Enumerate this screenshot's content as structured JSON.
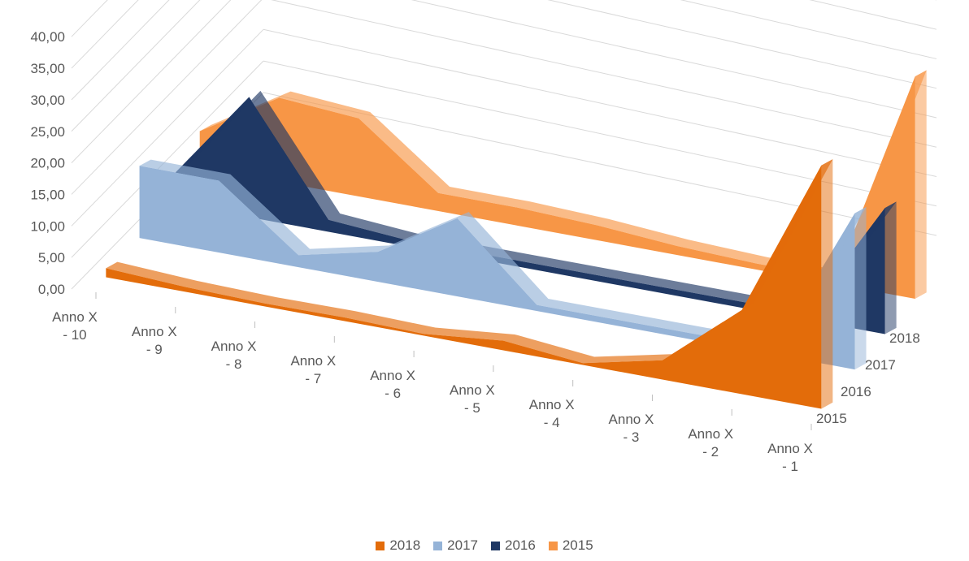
{
  "chart_data": {
    "type": "area",
    "subtype": "3d-area",
    "categories": [
      "Anno X - 10",
      "Anno X - 9",
      "Anno X - 8",
      "Anno X - 7",
      "Anno X - 6",
      "Anno X - 5",
      "Anno X - 4",
      "Anno X - 3",
      "Anno X - 2",
      "Anno X - 1"
    ],
    "y_ticks": [
      "0,00",
      "5,00",
      "10,00",
      "15,00",
      "20,00",
      "25,00",
      "30,00",
      "35,00",
      "40,00"
    ],
    "ylim": [
      0,
      40
    ],
    "depth_labels": [
      "2018",
      "2017",
      "2016",
      "2015"
    ],
    "grid": true,
    "legend_position": "bottom",
    "series": [
      {
        "name": "2018",
        "color": "#E36C0A",
        "values": [
          1.5,
          0.8,
          0.5,
          0.6,
          0.3,
          1.6,
          0.3,
          3.2,
          14.0,
          40.5
        ]
      },
      {
        "name": "2017",
        "color": "#95B3D7",
        "values": [
          12.0,
          12.0,
          2.0,
          5.0,
          13.0,
          1.0,
          1.0,
          1.0,
          1.5,
          26.0
        ]
      },
      {
        "name": "2016",
        "color": "#1F3864",
        "values": [
          4.0,
          20.0,
          2.0,
          1.0,
          1.0,
          1.0,
          1.0,
          1.0,
          1.0,
          21.0
        ]
      },
      {
        "name": "2015",
        "color": "#F79646",
        "values": [
          6.0,
          14.0,
          13.0,
          3.0,
          3.0,
          2.5,
          1.5,
          1.0,
          1.0,
          37.0
        ]
      }
    ]
  }
}
